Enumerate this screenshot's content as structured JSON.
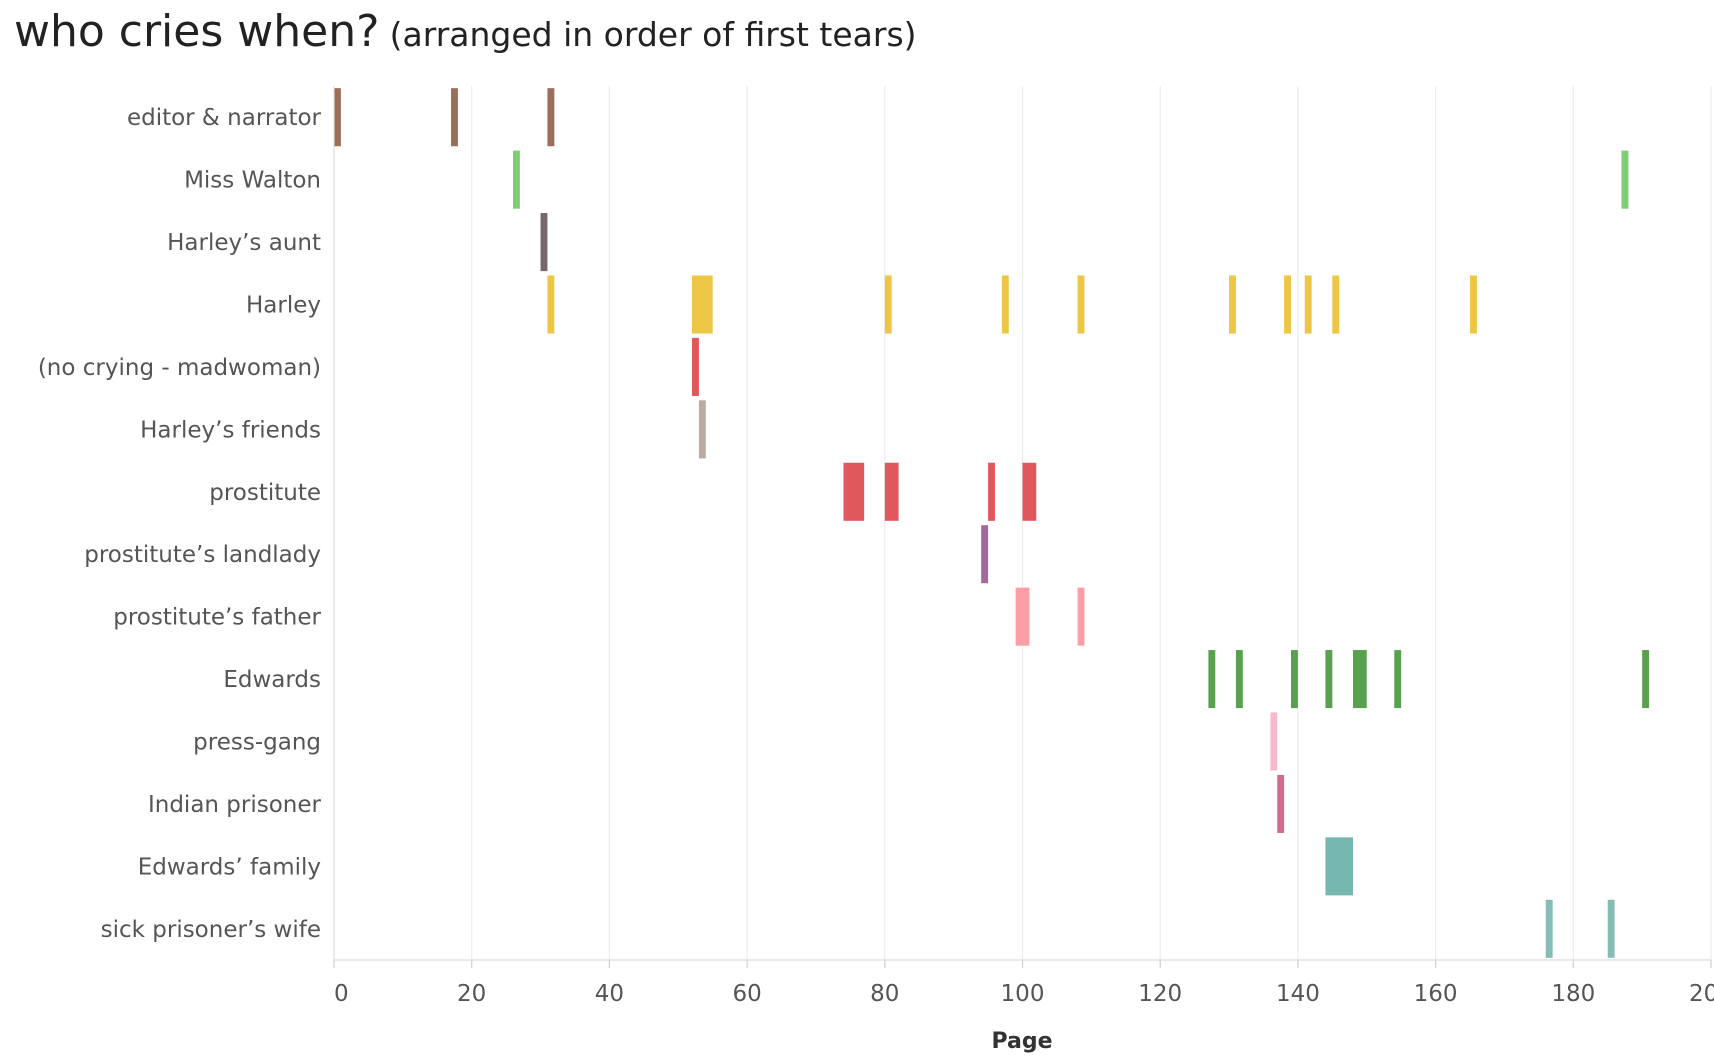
{
  "chart_data": {
    "type": "bar",
    "title": "who cries when?",
    "subtitle": "(arranged in order of first tears)",
    "xlabel": "Page",
    "ylabel": "",
    "xlim": [
      0,
      200
    ],
    "x_ticks": [
      0,
      20,
      40,
      60,
      80,
      100,
      120,
      140,
      160,
      180,
      200
    ],
    "x_tick_labels": [
      "0",
      "20",
      "40",
      "60",
      "80",
      "100",
      "120",
      "140",
      "160",
      "180",
      "200"
    ],
    "grid": "vertical",
    "legend": "none",
    "categories": [
      "editor & narrator",
      "Miss Walton",
      "Harley’s aunt",
      "Harley",
      "(no crying - madwoman)",
      "Harley’s friends",
      "prostitute",
      "prostitute’s landlady",
      "prostitute’s father",
      "Edwards",
      "press-gang",
      "Indian prisoner",
      "Edwards’ family",
      "sick prisoner’s wife"
    ],
    "series": [
      {
        "category": "editor & narrator",
        "color": "#9b6e58",
        "segments": [
          [
            0,
            1
          ],
          [
            17,
            18
          ],
          [
            31,
            32
          ]
        ]
      },
      {
        "category": "Miss Walton",
        "color": "#7fcf72",
        "segments": [
          [
            26,
            27
          ],
          [
            187,
            188
          ]
        ]
      },
      {
        "category": "Harley’s aunt",
        "color": "#75676a",
        "segments": [
          [
            30,
            31
          ]
        ]
      },
      {
        "category": "Harley",
        "color": "#ecc644",
        "segments": [
          [
            31,
            32
          ],
          [
            52,
            55
          ],
          [
            80,
            81
          ],
          [
            97,
            98
          ],
          [
            108,
            109
          ],
          [
            130,
            131
          ],
          [
            138,
            139
          ],
          [
            141,
            142
          ],
          [
            145,
            146
          ],
          [
            165,
            166
          ]
        ]
      },
      {
        "category": "(no crying - madwoman)",
        "color": "#e0585b",
        "segments": [
          [
            52,
            53
          ]
        ]
      },
      {
        "category": "Harley’s friends",
        "color": "#bba9a3",
        "segments": [
          [
            53,
            54
          ]
        ]
      },
      {
        "category": "prostitute",
        "color": "#e0585b",
        "segments": [
          [
            74,
            77
          ],
          [
            80,
            82
          ],
          [
            95,
            96
          ],
          [
            100,
            102
          ]
        ]
      },
      {
        "category": "prostitute’s landlady",
        "color": "#a06a9c",
        "segments": [
          [
            94,
            95
          ]
        ]
      },
      {
        "category": "prostitute’s father",
        "color": "#fd9da5",
        "segments": [
          [
            99,
            101
          ],
          [
            108,
            109
          ]
        ]
      },
      {
        "category": "Edwards",
        "color": "#59a14f",
        "segments": [
          [
            127,
            128
          ],
          [
            131,
            132
          ],
          [
            139,
            140
          ],
          [
            144,
            145
          ],
          [
            148,
            150
          ],
          [
            154,
            155
          ],
          [
            190,
            191
          ]
        ]
      },
      {
        "category": "press-gang",
        "color": "#f7b9cf",
        "segments": [
          [
            136,
            137
          ]
        ]
      },
      {
        "category": "Indian prisoner",
        "color": "#cf6b8e",
        "segments": [
          [
            137,
            138
          ]
        ]
      },
      {
        "category": "Edwards’ family",
        "color": "#76b8b0",
        "segments": [
          [
            144,
            148
          ]
        ]
      },
      {
        "category": "sick prisoner’s wife",
        "color": "#86bcb6",
        "segments": [
          [
            176,
            177
          ],
          [
            185,
            186
          ]
        ]
      }
    ]
  }
}
